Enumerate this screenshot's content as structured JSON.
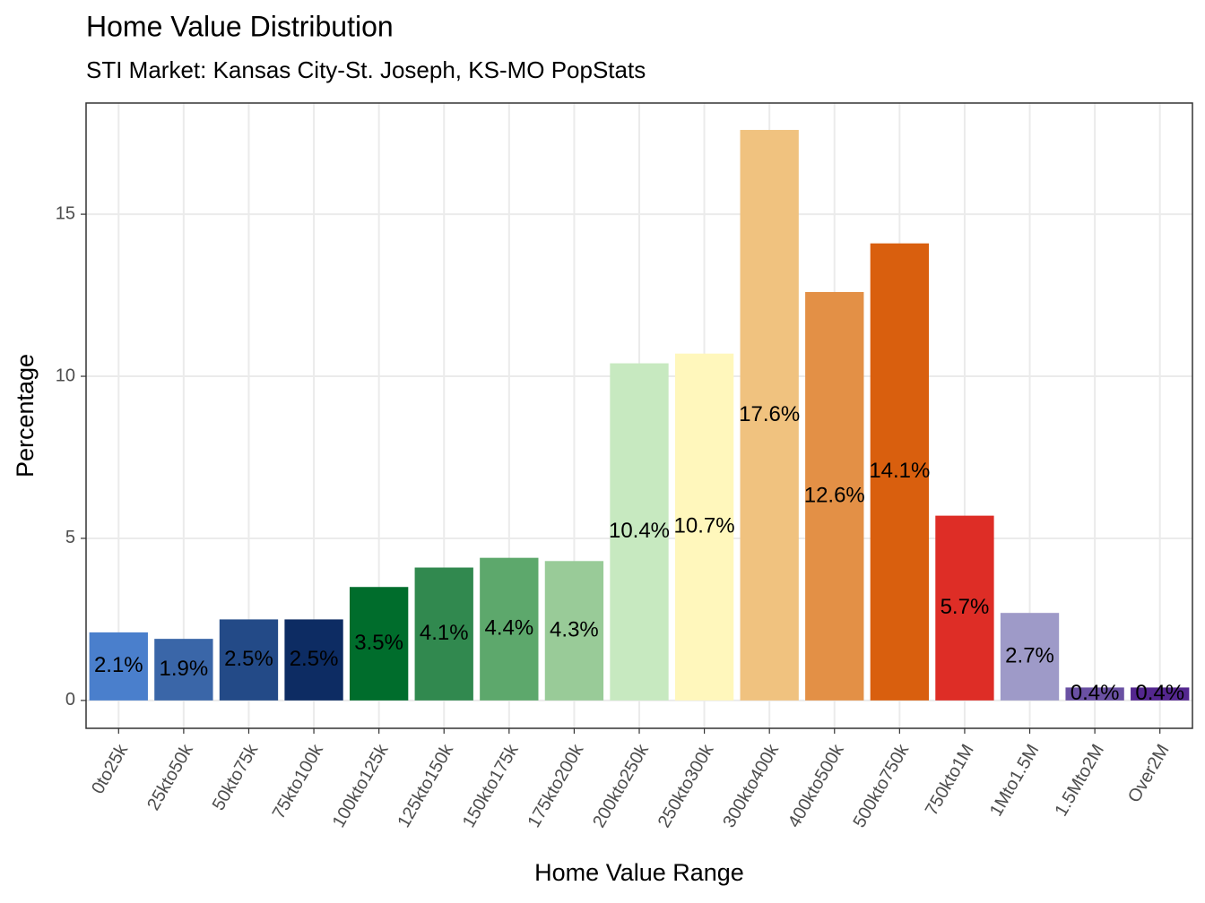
{
  "chart_data": {
    "type": "bar",
    "title": "Home Value Distribution",
    "subtitle": "STI Market: Kansas City-St. Joseph, KS-MO PopStats",
    "x_label": "Home Value Range",
    "y_label": "Percentage",
    "categories": [
      "0to25k",
      "25kto50k",
      "50kto75k",
      "75kto100k",
      "100kto125k",
      "125kto150k",
      "150kto175k",
      "175kto200k",
      "200kto250k",
      "250kto300k",
      "300kto400k",
      "400kto500k",
      "500kto750k",
      "750kto1M",
      "1Mto1.5M",
      "1.5Mto2M",
      "Over2M"
    ],
    "values": [
      2.1,
      1.9,
      2.5,
      2.5,
      3.5,
      4.1,
      4.4,
      4.3,
      10.4,
      10.7,
      17.6,
      12.6,
      14.1,
      5.7,
      2.7,
      0.4,
      0.4
    ],
    "value_labels": [
      "2.1%",
      "1.9%",
      "2.5%",
      "2.5%",
      "3.5%",
      "4.1%",
      "4.4%",
      "4.3%",
      "10.4%",
      "10.7%",
      "17.6%",
      "12.6%",
      "14.1%",
      "5.7%",
      "2.7%",
      "0.4%",
      "0.4%"
    ],
    "colors": [
      "#4a7fcc",
      "#3a66a8",
      "#234a87",
      "#0d2c63",
      "#006d2c",
      "#31894f",
      "#5da86c",
      "#99cb98",
      "#c7e9c0",
      "#fff7bc",
      "#f0c27f",
      "#e39046",
      "#d95f0e",
      "#de2d26",
      "#9e9ac8",
      "#6a51a3",
      "#54278f"
    ],
    "ylim": [
      -0.86,
      18.43
    ],
    "yticks": [
      0,
      5,
      10,
      15
    ],
    "grid": true
  }
}
